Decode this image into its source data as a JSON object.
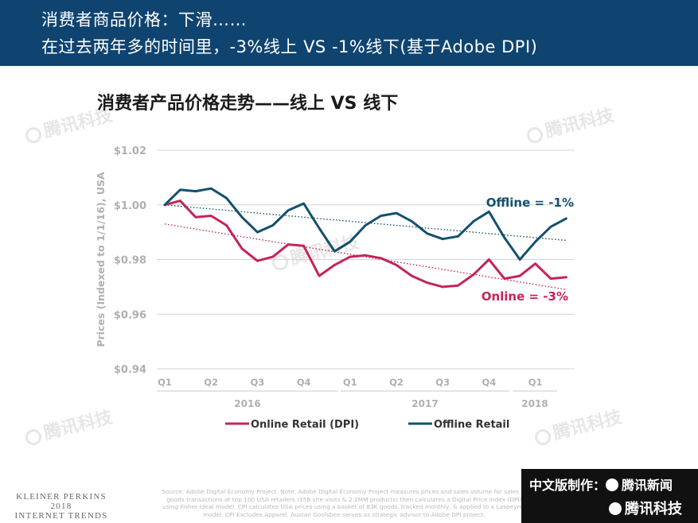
{
  "header": {
    "line1": "消费者商品价格：下滑……",
    "line2": "在过去两年多的时间里，-3%线上 VS  -1%线下(基于Adobe DPI)"
  },
  "chart_title": "消费者产品价格走势——线上 VS 线下",
  "chart_data": {
    "type": "line",
    "ylabel": "Prices (Indexed to 1/1/16), USA",
    "ylim": [
      0.94,
      1.02
    ],
    "yticks": [
      1.02,
      1.0,
      0.98,
      0.96,
      0.94
    ],
    "ytick_labels": [
      "$1.02",
      "$1.00",
      "$0.98",
      "$0.96",
      "$0.94"
    ],
    "quarter_labels": [
      "Q1",
      "Q2",
      "Q3",
      "Q4",
      "Q1",
      "Q2",
      "Q3",
      "Q4",
      "Q1"
    ],
    "year_labels": [
      "2016",
      "2017",
      "2018"
    ],
    "x_months": 29,
    "series": [
      {
        "name": "Online Retail (DPI)",
        "color": "#c4245a",
        "annotation": "Online = -3%",
        "values": [
          1.0,
          1.0015,
          0.9955,
          0.996,
          0.9925,
          0.984,
          0.9795,
          0.981,
          0.9855,
          0.985,
          0.974,
          0.978,
          0.981,
          0.9815,
          0.9805,
          0.978,
          0.974,
          0.9715,
          0.97,
          0.9705,
          0.9745,
          0.98,
          0.973,
          0.974,
          0.9785,
          0.973,
          0.9735
        ],
        "trend": [
          0.993,
          0.969
        ]
      },
      {
        "name": "Offline Retail",
        "color": "#14506e",
        "annotation": "Offline = -1%",
        "values": [
          1.0,
          1.0055,
          1.005,
          1.006,
          1.0025,
          0.9955,
          0.99,
          0.9925,
          0.998,
          1.0005,
          0.9915,
          0.983,
          0.9865,
          0.9925,
          0.996,
          0.997,
          0.994,
          0.9895,
          0.9875,
          0.9885,
          0.994,
          0.9975,
          0.988,
          0.98,
          0.9865,
          0.992,
          0.995
        ],
        "trend": [
          1.0,
          0.987
        ]
      }
    ],
    "legend_position": "bottom",
    "grid": true
  },
  "footer": {
    "brand_line1": "KLEINER PERKINS",
    "brand_line2": "2018",
    "brand_line3": "INTERNET TRENDS",
    "source": "Source: Adobe Digital Economy Project. Note: Adobe Digital Economy Project measures prices and sales volume for sales of goods transactions at top 100 USA retailers (15B site visits & 2.2MM products) then calculates a Digital Price Index (DPI) using Fisher Ideal model. CPI calculates USA prices using a basket of 83K goods, tracked monthly, & applied to a Laspeyres model. CPI Excludes Apparel. Austan Goolsbee serves as strategic advisor to Adobe DPI project.",
    "credit_line1": "中文版制作：",
    "credit_brand1": "腾讯新闻",
    "credit_brand2": "腾讯科技"
  },
  "watermark": "腾讯科技"
}
